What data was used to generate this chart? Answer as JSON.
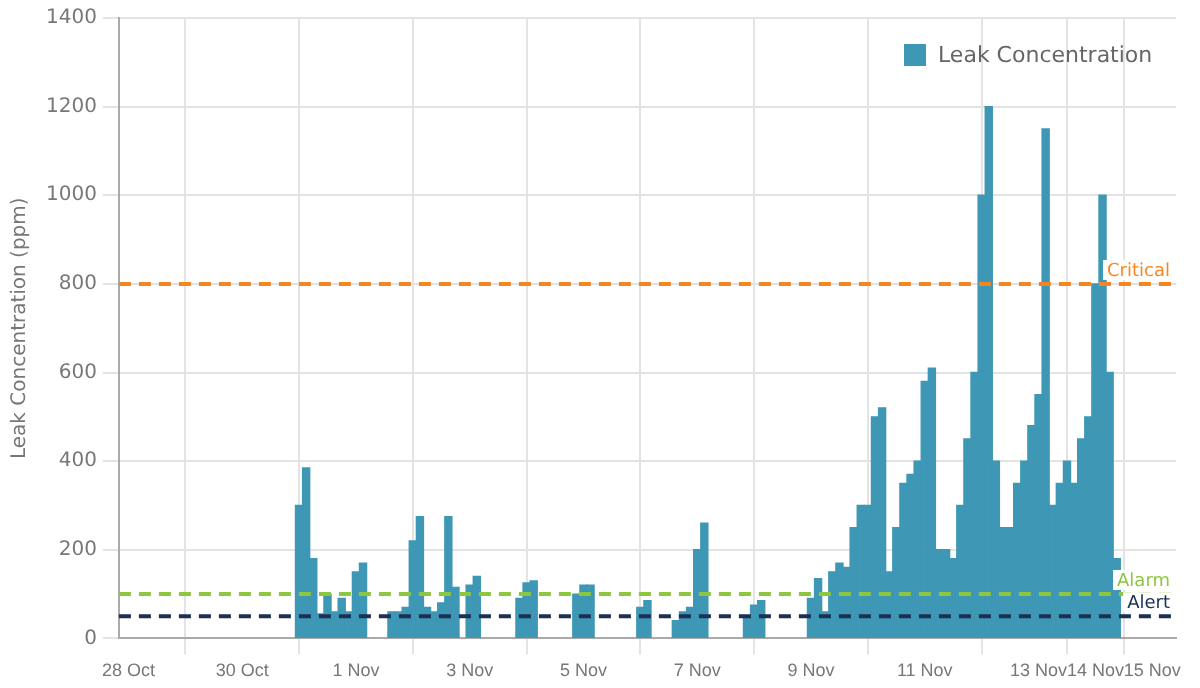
{
  "chart_data": {
    "type": "bar",
    "ylabel": "Leak Concentration (ppm)",
    "x": [
      "--10-31T00:00",
      "--10-31T03:00",
      "--10-31T06:00",
      "--10-31T09:00",
      "--10-31T12:00",
      "--10-31T15:00",
      "--10-31T18:00",
      "--10-31T21:00",
      "--11-01T00:00",
      "--11-01T03:00",
      "--11-01T06:00",
      "--11-01T09:00",
      "--11-01T12:00",
      "--11-01T15:00",
      "--11-01T18:00",
      "--11-01T21:00",
      "--11-02T00:00",
      "--11-02T03:00",
      "--11-02T06:00",
      "--11-02T09:00",
      "--11-02T12:00",
      "--11-02T15:00",
      "--11-02T18:00",
      "--11-02T21:00",
      "--11-03T00:00",
      "--11-03T03:00",
      "--11-03T06:00",
      "--11-03T09:00",
      "--11-03T12:00",
      "--11-03T15:00",
      "--11-03T18:00",
      "--11-03T21:00",
      "--11-04T00:00",
      "--11-04T03:00",
      "--11-04T06:00",
      "--11-04T09:00",
      "--11-04T12:00",
      "--11-04T15:00",
      "--11-04T18:00",
      "--11-04T21:00",
      "--11-05T00:00",
      "--11-05T03:00",
      "--11-05T06:00",
      "--11-05T09:00",
      "--11-05T12:00",
      "--11-05T15:00",
      "--11-05T18:00",
      "--11-05T21:00",
      "--11-06T00:00",
      "--11-06T03:00",
      "--11-06T06:00",
      "--11-06T09:00",
      "--11-06T12:00",
      "--11-06T15:00",
      "--11-06T18:00",
      "--11-06T21:00",
      "--11-07T00:00",
      "--11-07T03:00",
      "--11-07T06:00",
      "--11-07T09:00",
      "--11-07T12:00",
      "--11-07T15:00",
      "--11-07T18:00",
      "--11-07T21:00",
      "--11-08T00:00",
      "--11-08T03:00",
      "--11-08T06:00",
      "--11-08T09:00",
      "--11-08T12:00",
      "--11-08T15:00",
      "--11-08T18:00",
      "--11-08T21:00",
      "--11-09T00:00",
      "--11-09T03:00",
      "--11-09T06:00",
      "--11-09T09:00",
      "--11-09T12:00",
      "--11-09T15:00",
      "--11-09T18:00",
      "--11-09T21:00",
      "--11-10T00:00",
      "--11-10T03:00",
      "--11-10T06:00",
      "--11-10T09:00",
      "--11-10T12:00",
      "--11-10T15:00",
      "--11-10T18:00",
      "--11-10T21:00",
      "--11-11T00:00",
      "--11-11T03:00",
      "--11-11T06:00",
      "--11-11T09:00",
      "--11-11T12:00",
      "--11-11T15:00",
      "--11-11T18:00",
      "--11-11T21:00",
      "--11-12T00:00",
      "--11-12T03:00",
      "--11-12T06:00",
      "--11-12T09:00",
      "--11-12T12:00",
      "--11-12T15:00",
      "--11-12T18:00",
      "--11-12T21:00",
      "--11-13T00:00",
      "--11-13T03:00",
      "--11-13T06:00",
      "--11-13T09:00",
      "--11-13T12:00",
      "--11-13T15:00",
      "--11-13T18:00",
      "--11-13T21:00",
      "--11-14T00:00",
      "--11-14T03:00",
      "--11-14T06:00",
      "--11-14T09:00"
    ],
    "series": [
      {
        "name": "Leak Concentration",
        "color": "#3d97b5",
        "values": [
          300,
          385,
          180,
          55,
          100,
          60,
          90,
          60,
          150,
          170,
          null,
          null,
          null,
          60,
          60,
          70,
          220,
          275,
          70,
          60,
          80,
          275,
          115,
          null,
          120,
          140,
          null,
          null,
          null,
          null,
          null,
          90,
          125,
          130,
          null,
          null,
          null,
          null,
          null,
          100,
          120,
          120,
          null,
          null,
          null,
          null,
          null,
          null,
          70,
          85,
          null,
          null,
          null,
          40,
          60,
          70,
          200,
          260,
          null,
          null,
          null,
          null,
          null,
          50,
          75,
          85,
          null,
          null,
          null,
          null,
          null,
          null,
          90,
          135,
          60,
          150,
          170,
          160,
          250,
          300,
          300,
          500,
          520,
          150,
          250,
          350,
          370,
          400,
          580,
          610,
          200,
          200,
          180,
          300,
          450,
          600,
          1000,
          1200,
          400,
          250,
          250,
          350,
          400,
          480,
          550,
          1150,
          300,
          350,
          400,
          350,
          450,
          500,
          800,
          1000,
          600,
          180
        ]
      }
    ],
    "xlim": [
      "--10-27T20:00",
      "--11-15T10:00"
    ],
    "xticks": [
      {
        "value": "--10-28",
        "label": "28 Oct"
      },
      {
        "value": "--10-30",
        "label": "30 Oct"
      },
      {
        "value": "--11-01",
        "label": "1 Nov"
      },
      {
        "value": "--11-03",
        "label": "3 Nov"
      },
      {
        "value": "--11-05",
        "label": "5 Nov"
      },
      {
        "value": "--11-07",
        "label": "7 Nov"
      },
      {
        "value": "--11-09",
        "label": "9 Nov"
      },
      {
        "value": "--11-11",
        "label": "11 Nov"
      },
      {
        "value": "--11-13",
        "label": "13 Nov"
      },
      {
        "value": "--11-14",
        "label": "14 Nov"
      },
      {
        "value": "--11-15",
        "label": "15 Nov"
      }
    ],
    "ylim": [
      0,
      1400
    ],
    "yticks": [
      0,
      200,
      400,
      600,
      800,
      1000,
      1200,
      1400
    ],
    "ref_lines": [
      {
        "axis": "y",
        "value": 800,
        "label": "Critical",
        "color": "#f5861f",
        "line_style": "dashed"
      },
      {
        "axis": "y",
        "value": 100,
        "label": "Alarm",
        "color": "#8dc63f",
        "line_style": "dashed"
      },
      {
        "axis": "y",
        "value": 50,
        "label": "Alert",
        "color": "#1c2f55",
        "line_style": "dashed"
      }
    ],
    "grid": true,
    "legend": "top right"
  }
}
